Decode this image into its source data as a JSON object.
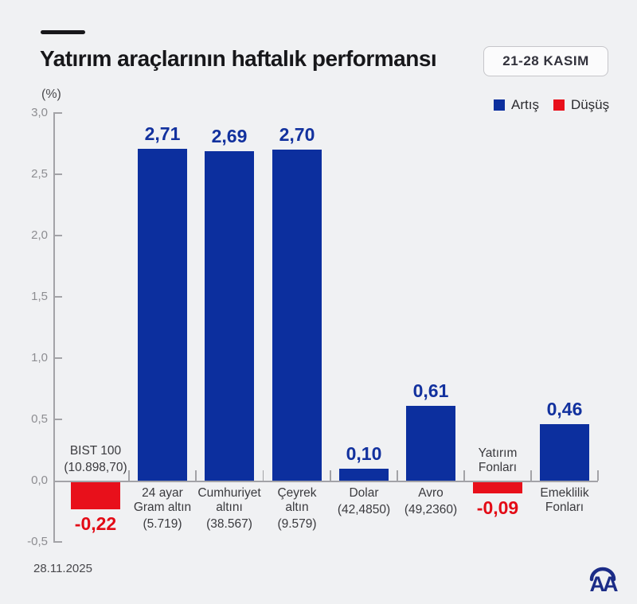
{
  "header": {
    "title": "Yatırım araçlarının haftalık performansı",
    "badge": "21-28 KASIM"
  },
  "legend": {
    "increase_label": "Artış",
    "decrease_label": "Düşüş"
  },
  "axis": {
    "unit_label": "(%)",
    "y_tick_labels": [
      "3,0",
      "2,5",
      "2,0",
      "1,5",
      "1,0",
      "0,5",
      "0,0",
      "-0,5"
    ],
    "y_tick_values": [
      3.0,
      2.5,
      2.0,
      1.5,
      1.0,
      0.5,
      0.0,
      -0.5
    ]
  },
  "colors": {
    "increase": "#0c2f9e",
    "decrease": "#e8101b",
    "value_text_increase": "#12319e",
    "value_text_decrease": "#e30b16",
    "background": "#f0f1f3"
  },
  "footer": {
    "date": "28.11.2025",
    "logo": "AA"
  },
  "chart_data": {
    "type": "bar",
    "title": "Yatırım araçlarının haftalık performansı",
    "subtitle": "21-28 KASIM",
    "ylabel": "(%)",
    "ylim": [
      -0.5,
      3.0
    ],
    "grid": false,
    "legend_position": "top-right",
    "categories": [
      "BIST 100",
      "24 ayar Gram altın",
      "Cumhuriyet altını",
      "Çeyrek altın",
      "Dolar",
      "Avro",
      "Yatırım Fonları",
      "Emeklilik Fonları"
    ],
    "values": [
      -0.22,
      2.71,
      2.69,
      2.7,
      0.1,
      0.61,
      -0.09,
      0.46
    ],
    "bars": [
      {
        "name_lines": [
          "BIST 100"
        ],
        "detail": "(10.898,70)",
        "value": -0.22,
        "value_label": "-0,22",
        "direction": "decrease"
      },
      {
        "name_lines": [
          "24 ayar",
          "Gram altın"
        ],
        "detail": "(5.719)",
        "value": 2.71,
        "value_label": "2,71",
        "direction": "increase"
      },
      {
        "name_lines": [
          "Cumhuriyet",
          "altını"
        ],
        "detail": "(38.567)",
        "value": 2.69,
        "value_label": "2,69",
        "direction": "increase"
      },
      {
        "name_lines": [
          "Çeyrek",
          "altın"
        ],
        "detail": "(9.579)",
        "value": 2.7,
        "value_label": "2,70",
        "direction": "increase"
      },
      {
        "name_lines": [
          "Dolar"
        ],
        "detail": "(42,4850)",
        "value": 0.1,
        "value_label": "0,10",
        "direction": "increase"
      },
      {
        "name_lines": [
          "Avro"
        ],
        "detail": "(49,2360)",
        "value": 0.61,
        "value_label": "0,61",
        "direction": "increase"
      },
      {
        "name_lines": [
          "Yatırım",
          "Fonları"
        ],
        "detail": "",
        "value": -0.09,
        "value_label": "-0,09",
        "direction": "decrease"
      },
      {
        "name_lines": [
          "Emeklilik",
          "Fonları"
        ],
        "detail": "",
        "value": 0.46,
        "value_label": "0,46",
        "direction": "increase"
      }
    ]
  }
}
